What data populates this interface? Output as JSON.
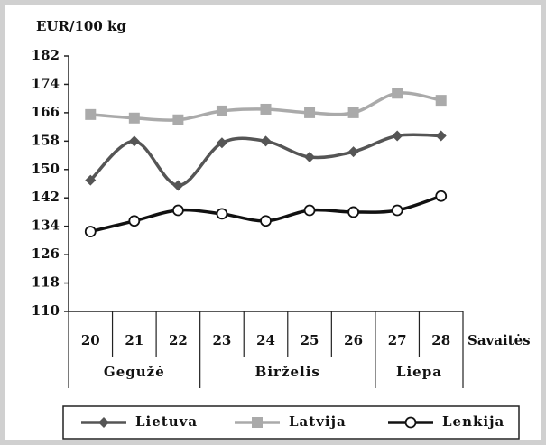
{
  "chart_data": {
    "type": "line",
    "y_label": "EUR/100 kg",
    "x_label": "Savaitės",
    "categories": [
      "20",
      "21",
      "22",
      "23",
      "24",
      "25",
      "26",
      "27",
      "28"
    ],
    "group_labels": [
      "Gegužė",
      "Birželis",
      "Liepa"
    ],
    "group_sizes": [
      3,
      4,
      2
    ],
    "series": [
      {
        "name": "Lietuva",
        "color": "#555555",
        "marker": "diamond",
        "values": [
          147,
          158,
          145.5,
          157.5,
          158,
          153.5,
          155,
          159.5,
          159.5
        ]
      },
      {
        "name": "Latvija",
        "color": "#aaaaaa",
        "marker": "square",
        "values": [
          165.5,
          164.5,
          164,
          166.5,
          167,
          166,
          166,
          171.5,
          169.5
        ]
      },
      {
        "name": "Lenkija",
        "color": "#111111",
        "marker": "circle",
        "values": [
          132.5,
          135.5,
          138.5,
          137.5,
          135.5,
          138.5,
          138,
          138.5,
          142.5
        ]
      }
    ],
    "ylim": [
      110,
      182
    ],
    "yticks": [
      110,
      118,
      126,
      134,
      142,
      150,
      158,
      166,
      174,
      182
    ],
    "grid": false,
    "legend": "bottom"
  }
}
